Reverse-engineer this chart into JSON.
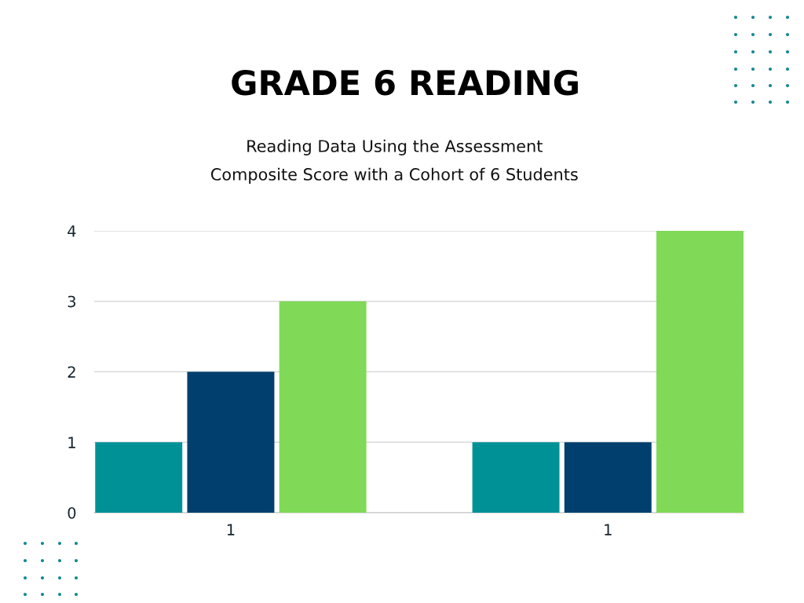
{
  "chart_data": {
    "type": "bar",
    "title": "GRADE 6 READING",
    "subtitle": "Reading Data Using the Assessment\nComposite Score with a Cohort of 6 Students",
    "categories": [
      "1",
      "1"
    ],
    "series": [
      {
        "color": "#009196",
        "values": [
          1,
          1
        ]
      },
      {
        "color": "#003f6e",
        "values": [
          2,
          1
        ]
      },
      {
        "color": "#80d957",
        "values": [
          3,
          4
        ]
      }
    ],
    "ylim": [
      0,
      4
    ],
    "yticks": [
      0,
      1,
      2,
      3,
      4
    ],
    "grid": "y"
  }
}
